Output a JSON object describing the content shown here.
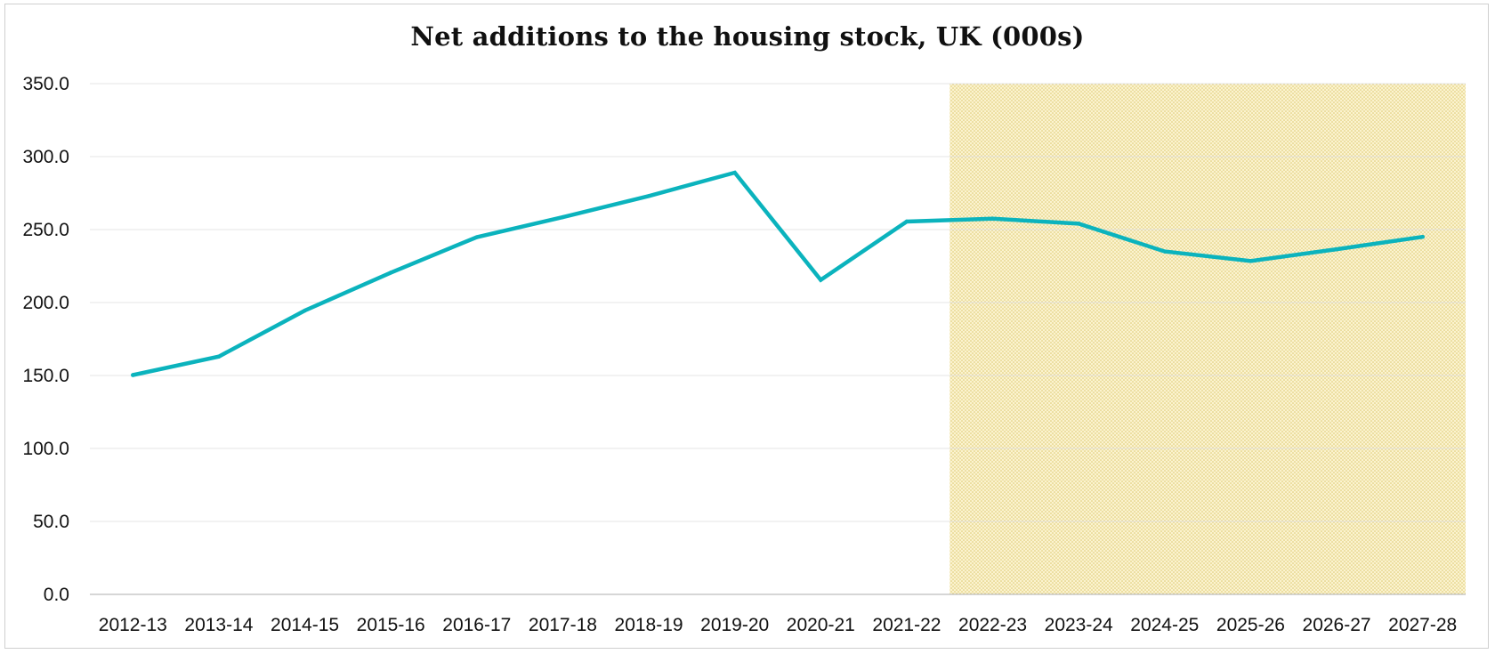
{
  "chart_data": {
    "type": "line",
    "title": "Net additions to the housing stock, UK (000s)",
    "xlabel": "",
    "ylabel": "",
    "categories": [
      "2012-13",
      "2013-14",
      "2014-15",
      "2015-16",
      "2016-17",
      "2017-18",
      "2018-19",
      "2019-20",
      "2020-21",
      "2021-22",
      "2022-23",
      "2023-24",
      "2024-25",
      "2025-26",
      "2026-27",
      "2027-28"
    ],
    "series": [
      {
        "values": [
          150.3,
          163.0,
          194.5,
          220.5,
          244.8,
          258.5,
          273.0,
          289.0,
          215.5,
          255.5,
          257.5,
          254.0,
          235.0,
          228.5,
          236.5,
          245.0
        ]
      }
    ],
    "ylim": [
      0,
      350
    ],
    "yticks": [
      "0.0",
      "50.0",
      "100.0",
      "150.0",
      "200.0",
      "250.0",
      "300.0",
      "350.0"
    ],
    "grid": true,
    "shaded_region": {
      "from_category": "2022-23",
      "to_category": "2027-28",
      "color": "#f3e7a6"
    },
    "colors": {
      "line": "#0bb3bd",
      "grid": "#e6e6e6",
      "axis": "#bdbdbd"
    }
  }
}
